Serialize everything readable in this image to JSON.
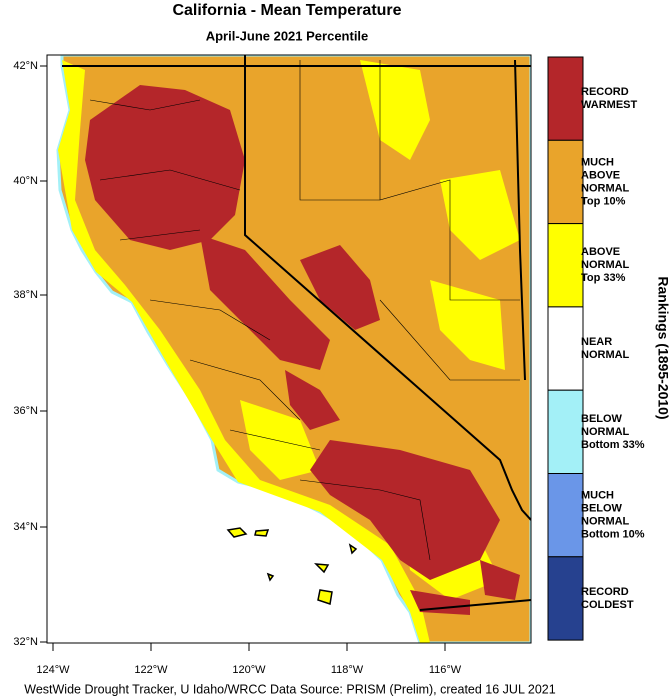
{
  "header": {
    "title": "California - Mean Temperature",
    "subtitle": "April-June 2021 Percentile"
  },
  "map": {
    "lat_ticks": [
      "42°N",
      "40°N",
      "38°N",
      "36°N",
      "34°N",
      "32°N"
    ],
    "lon_ticks": [
      "124°W",
      "122°W",
      "120°W",
      "118°W",
      "116°W"
    ]
  },
  "legend": {
    "title": "Rankings (1895-2010)",
    "items": [
      {
        "lines": [
          "RECORD",
          "WARMEST"
        ],
        "color": "#b4262a"
      },
      {
        "lines": [
          "MUCH",
          "ABOVE",
          "NORMAL",
          "Top 10%"
        ],
        "color": "#e9a42b"
      },
      {
        "lines": [
          "ABOVE",
          "NORMAL",
          "Top 33%"
        ],
        "color": "#ffff00"
      },
      {
        "lines": [
          "NEAR",
          "NORMAL"
        ],
        "color": "#ffffff"
      },
      {
        "lines": [
          "BELOW",
          "NORMAL",
          "Bottom 33%"
        ],
        "color": "#a3f0f7"
      },
      {
        "lines": [
          "MUCH",
          "BELOW",
          "NORMAL",
          "Bottom 10%"
        ],
        "color": "#6a96e8"
      },
      {
        "lines": [
          "RECORD",
          "COLDEST"
        ],
        "color": "#26418f"
      }
    ]
  },
  "footer": "WestWide Drought Tracker, U Idaho/WRCC Data Source: PRISM (Prelim), created 16 JUL 2021"
}
